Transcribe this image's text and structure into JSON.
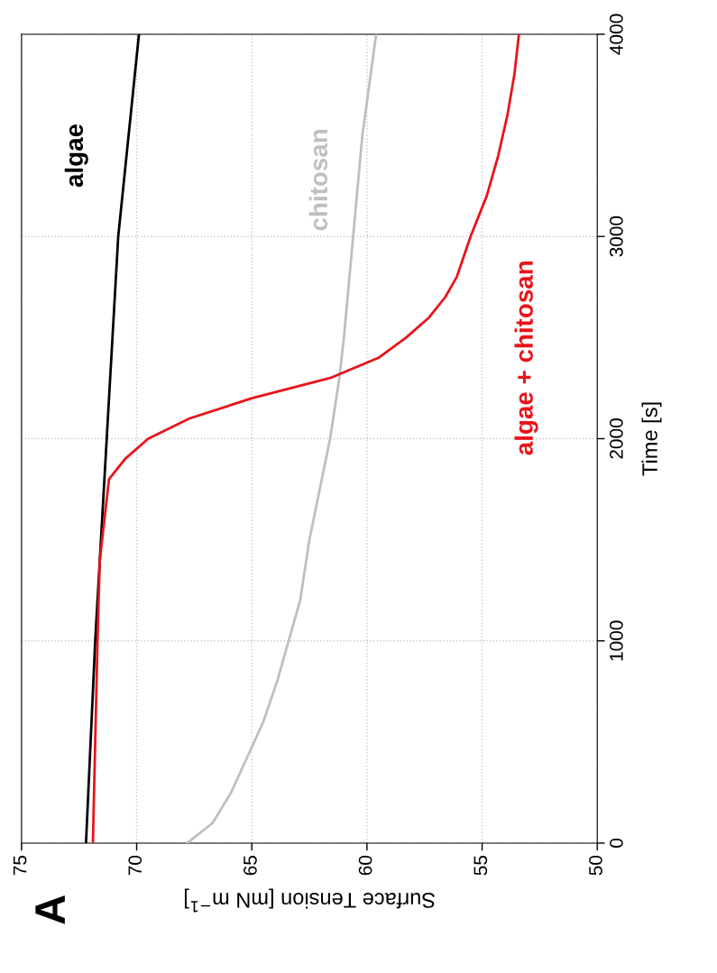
{
  "chart_data": {
    "type": "line",
    "title": "A",
    "xlabel": "Surface Tension [mN m$^{−1}$]",
    "ylabel": "Time [s]",
    "xlim": [
      75,
      50
    ],
    "xticks": [
      75,
      70,
      65,
      60,
      55,
      50
    ],
    "ylim": [
      0,
      4000
    ],
    "yticks": [
      0,
      1000,
      2000,
      3000,
      4000
    ],
    "grid": true,
    "series": [
      {
        "name": "algae",
        "color": "#000000",
        "values": [
          0,
          1000,
          2000,
          3000,
          4000
        ],
        "x": [
          72.2,
          71.8,
          71.3,
          70.8,
          69.9
        ]
      },
      {
        "name": "chitosan",
        "color": "#bfbfbf",
        "values": [
          0,
          100,
          250,
          400,
          600,
          800,
          1000,
          1200,
          1500,
          2000,
          2300,
          2500,
          3000,
          3500,
          4000
        ],
        "x": [
          67.8,
          66.7,
          65.9,
          65.3,
          64.5,
          63.9,
          63.4,
          62.9,
          62.5,
          61.6,
          61.2,
          61.0,
          60.6,
          60.2,
          59.6
        ]
      },
      {
        "name": "algae + chitosan",
        "color": "#e8141b",
        "values": [
          0,
          1000,
          1400,
          1800,
          1900,
          2000,
          2100,
          2200,
          2300,
          2400,
          2500,
          2600,
          2700,
          2800,
          3000,
          3200,
          3400,
          3600,
          3800,
          4000
        ],
        "x": [
          71.9,
          71.7,
          71.6,
          71.2,
          70.5,
          69.5,
          67.7,
          65.0,
          61.6,
          59.5,
          58.3,
          57.3,
          56.6,
          56.1,
          55.5,
          54.8,
          54.3,
          53.9,
          53.6,
          53.4
        ]
      }
    ]
  }
}
